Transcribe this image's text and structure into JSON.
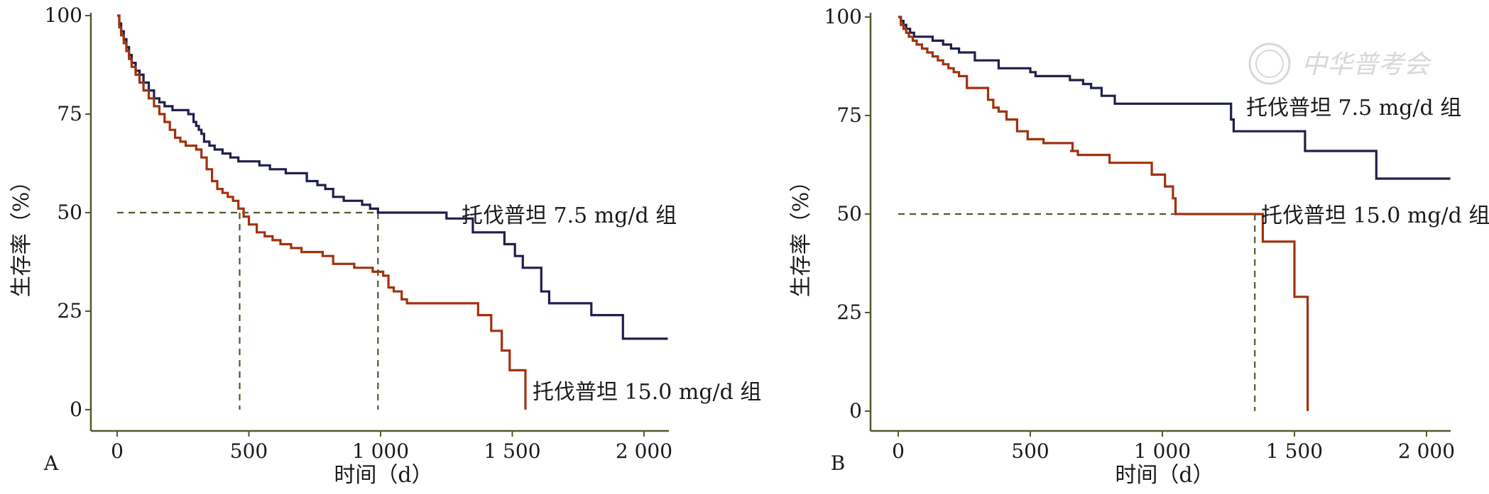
{
  "colors": {
    "axis": "#4f5a2e",
    "ref_line": "#4f5a2e",
    "series_7_5": "#1f1f4d",
    "series_15_0": "#a0320f",
    "watermark": "#d8d8d8"
  },
  "watermark": {
    "text": "中华普考会",
    "icon": "seal-icon"
  },
  "chart_data": [
    {
      "type": "line",
      "step": true,
      "panel_label": "A",
      "title": "",
      "xlabel": "时间（d）",
      "ylabel": "生存率（%）",
      "xlim": [
        0,
        2100
      ],
      "ylim": [
        0,
        100
      ],
      "x_ticks": [
        0,
        500,
        1000,
        1500,
        2000
      ],
      "x_tick_labels": [
        "0",
        "500",
        "1 000",
        "1 500",
        "2 000"
      ],
      "y_ticks": [
        0,
        25,
        50,
        75,
        100
      ],
      "y_tick_labels": [
        "0",
        "25",
        "50",
        "75",
        "100"
      ],
      "grid": false,
      "reference_lines": {
        "y": 50,
        "x": [
          465,
          990
        ],
        "style": "dashed"
      },
      "series": [
        {
          "name": "托伐普坦 7.5 mg/d 组",
          "color": "#1f1f4d",
          "x": [
            0,
            8,
            15,
            25,
            35,
            45,
            55,
            70,
            85,
            100,
            120,
            140,
            160,
            180,
            210,
            240,
            270,
            290,
            300,
            310,
            320,
            330,
            350,
            370,
            400,
            430,
            460,
            500,
            540,
            560,
            580,
            640,
            720,
            760,
            790,
            820,
            860,
            900,
            930,
            960,
            990,
            1250,
            1270,
            1350,
            1400,
            1470,
            1510,
            1540,
            1560,
            1610,
            1640,
            1800,
            1920,
            2090
          ],
          "values": [
            100,
            98,
            96,
            94,
            92,
            90,
            88,
            86,
            85,
            83,
            81,
            79,
            78,
            77,
            76,
            76,
            75,
            73,
            72,
            71,
            70,
            68,
            67,
            66,
            65,
            64,
            63,
            63,
            62,
            62,
            61,
            60,
            58,
            57,
            56,
            54,
            53,
            53,
            52,
            51,
            50,
            48.5,
            48.5,
            45,
            45,
            42,
            39,
            36,
            36,
            30,
            27,
            24,
            18,
            18
          ]
        },
        {
          "name": "托伐普坦 15.0 mg/d 组",
          "color": "#a0320f",
          "x": [
            0,
            8,
            15,
            25,
            35,
            45,
            55,
            70,
            85,
            100,
            120,
            140,
            160,
            180,
            200,
            220,
            240,
            260,
            280,
            300,
            320,
            340,
            360,
            380,
            400,
            420,
            440,
            460,
            480,
            500,
            530,
            560,
            590,
            620,
            660,
            700,
            740,
            780,
            820,
            860,
            900,
            940,
            970,
            990,
            1010,
            1030,
            1050,
            1080,
            1100,
            1200,
            1300,
            1370,
            1420,
            1460,
            1490,
            1530,
            1550
          ],
          "values": [
            100,
            97,
            95,
            93,
            91,
            89,
            87,
            85,
            83,
            81,
            79,
            77,
            75,
            73,
            71,
            69,
            68,
            67,
            67,
            66,
            64,
            61,
            58,
            56,
            55,
            54,
            53,
            51,
            49,
            47,
            45,
            44,
            43,
            42,
            41,
            40,
            40,
            39,
            37,
            37,
            36,
            36,
            35,
            35,
            34,
            31,
            30,
            28,
            27,
            27,
            27,
            24,
            20,
            15,
            10,
            10,
            0
          ]
        }
      ]
    },
    {
      "type": "line",
      "step": true,
      "panel_label": "B",
      "title": "",
      "xlabel": "时间（d）",
      "ylabel": "生存率（%）",
      "xlim": [
        0,
        2100
      ],
      "ylim": [
        0,
        100
      ],
      "x_ticks": [
        0,
        500,
        1000,
        1500,
        2000
      ],
      "x_tick_labels": [
        "0",
        "500",
        "1 000",
        "1 500",
        "2 000"
      ],
      "y_ticks": [
        0,
        25,
        50,
        75,
        100
      ],
      "y_tick_labels": [
        "0",
        "25",
        "50",
        "75",
        "100"
      ],
      "grid": false,
      "reference_lines": {
        "y": 50,
        "x": [
          1350
        ],
        "style": "dashed"
      },
      "series": [
        {
          "name": "托伐普坦 7.5 mg/d 组",
          "color": "#1f1f4d",
          "x": [
            0,
            10,
            20,
            30,
            45,
            60,
            80,
            130,
            170,
            200,
            230,
            290,
            380,
            500,
            520,
            560,
            650,
            690,
            700,
            730,
            770,
            820,
            1000,
            1100,
            1260,
            1270,
            1540,
            1610,
            1810,
            2090
          ],
          "values": [
            100,
            99,
            98,
            97,
            96,
            95,
            95,
            94,
            93,
            92,
            91,
            89,
            87,
            86,
            85,
            85,
            84,
            84,
            83,
            82,
            80,
            78,
            78,
            78,
            74,
            71,
            66,
            66,
            59,
            59
          ]
        },
        {
          "name": "托伐普坦 15.0 mg/d 组",
          "color": "#a0320f",
          "x": [
            0,
            10,
            20,
            30,
            40,
            55,
            70,
            90,
            110,
            130,
            150,
            170,
            190,
            210,
            230,
            260,
            330,
            340,
            360,
            380,
            410,
            450,
            490,
            550,
            600,
            660,
            650,
            680,
            750,
            800,
            830,
            870,
            960,
            1010,
            1040,
            1050,
            1350,
            1380,
            1450,
            1500,
            1550
          ],
          "values": [
            100,
            98,
            97,
            96,
            95,
            94,
            93,
            92,
            91,
            90,
            89,
            88,
            87,
            86,
            85,
            82,
            82,
            79,
            77,
            76,
            74,
            71,
            69,
            68,
            68,
            66,
            66,
            65,
            65,
            63,
            63,
            63,
            60,
            57,
            54,
            50,
            50,
            43,
            43,
            29,
            0
          ]
        }
      ]
    }
  ]
}
